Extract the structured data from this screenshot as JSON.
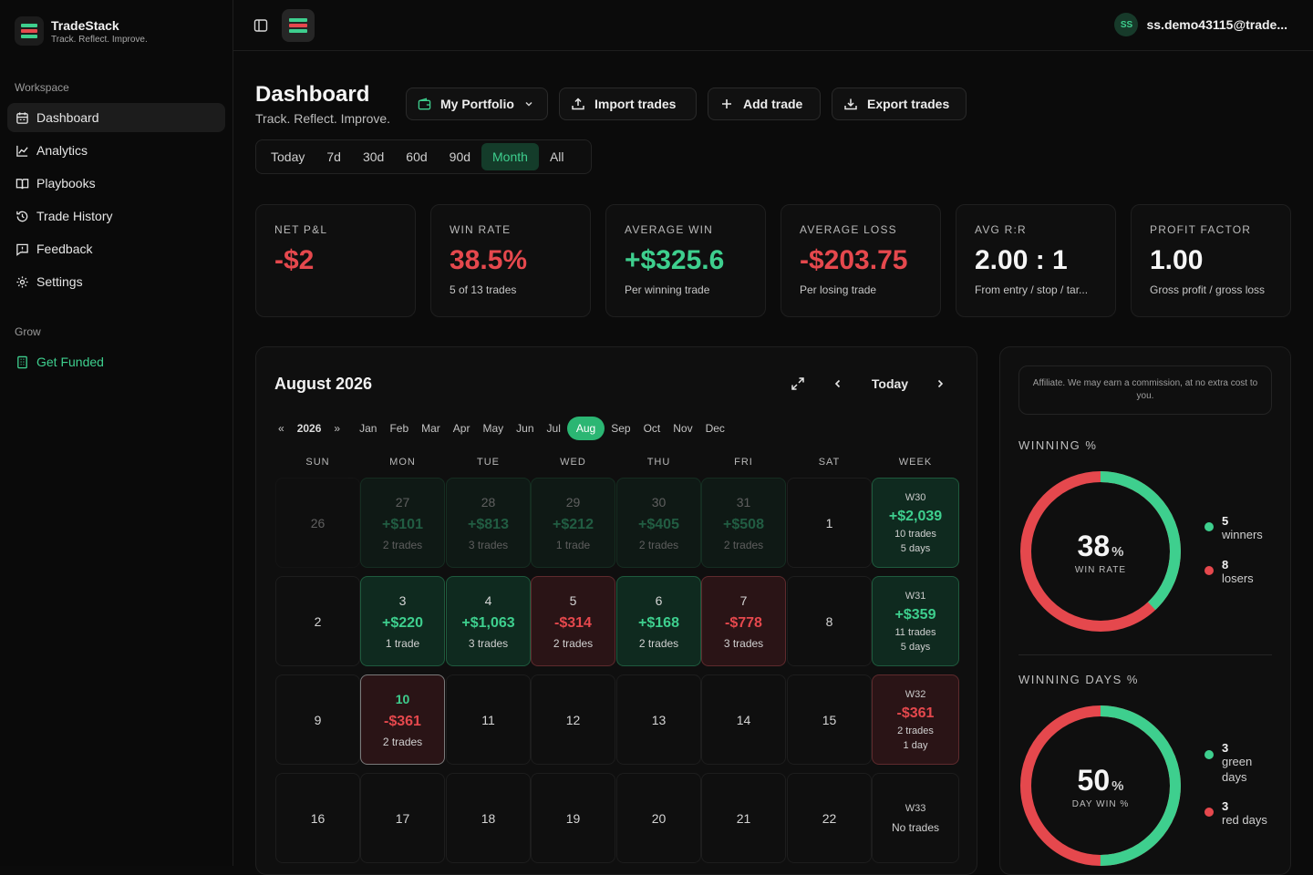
{
  "brand": {
    "name": "TradeStack",
    "tagline": "Track. Reflect. Improve."
  },
  "sidebar": {
    "workspace_label": "Workspace",
    "items": [
      {
        "label": "Dashboard",
        "icon": "calendar-icon",
        "active": true
      },
      {
        "label": "Analytics",
        "icon": "chart-line-icon"
      },
      {
        "label": "Playbooks",
        "icon": "book-icon"
      },
      {
        "label": "Trade History",
        "icon": "history-icon"
      },
      {
        "label": "Feedback",
        "icon": "message-icon"
      },
      {
        "label": "Settings",
        "icon": "gear-icon"
      }
    ],
    "grow_label": "Grow",
    "funded": {
      "label": "Get Funded",
      "icon": "building-icon"
    }
  },
  "topbar": {
    "user_initials": "SS",
    "user_email": "ss.demo43115@trade..."
  },
  "header": {
    "title": "Dashboard",
    "subtitle": "Track. Reflect. Improve.",
    "portfolio": "My Portfolio",
    "import_label": "Import trades",
    "add_label": "Add trade",
    "export_label": "Export trades"
  },
  "ranges": [
    "Today",
    "7d",
    "30d",
    "60d",
    "90d",
    "Month",
    "All"
  ],
  "active_range": "Month",
  "stats": [
    {
      "label": "NET P&L",
      "value": "-$2",
      "sub": "",
      "tone": "red"
    },
    {
      "label": "WIN RATE",
      "value": "38.5%",
      "sub": "5 of 13 trades",
      "tone": "red"
    },
    {
      "label": "AVERAGE WIN",
      "value": "+$325.6",
      "sub": "Per winning trade",
      "tone": "green"
    },
    {
      "label": "AVERAGE LOSS",
      "value": "-$203.75",
      "sub": "Per losing trade",
      "tone": "red"
    },
    {
      "label": "AVG R:R",
      "value": "2.00 : 1",
      "sub": "From entry / stop / tar...",
      "tone": "white"
    },
    {
      "label": "PROFIT FACTOR",
      "value": "1.00",
      "sub": "Gross profit / gross loss",
      "tone": "white"
    }
  ],
  "calendar": {
    "title": "August 2026",
    "today_label": "Today",
    "year": "2026",
    "year_prev": "«",
    "year_next": "»",
    "months": [
      "Jan",
      "Feb",
      "Mar",
      "Apr",
      "May",
      "Jun",
      "Jul",
      "Aug",
      "Sep",
      "Oct",
      "Nov",
      "Dec"
    ],
    "active_month": "Aug",
    "dow": [
      "SUN",
      "MON",
      "TUE",
      "WED",
      "THU",
      "FRI",
      "SAT",
      "WEEK"
    ],
    "weeks": [
      {
        "days": [
          {
            "d": "26",
            "faded": true
          },
          {
            "d": "27",
            "pl": "+$101",
            "tr": "2 trades",
            "s": "win",
            "faded": true
          },
          {
            "d": "28",
            "pl": "+$813",
            "tr": "3 trades",
            "s": "win",
            "faded": true
          },
          {
            "d": "29",
            "pl": "+$212",
            "tr": "1 trade",
            "s": "win",
            "faded": true
          },
          {
            "d": "30",
            "pl": "+$405",
            "tr": "2 trades",
            "s": "win",
            "faded": true
          },
          {
            "d": "31",
            "pl": "+$508",
            "tr": "2 trades",
            "s": "win",
            "faded": true
          },
          {
            "d": "1"
          }
        ],
        "summary": {
          "label": "W30",
          "pl": "+$2,039",
          "trades": "10 trades",
          "days": "5 days",
          "s": "win"
        }
      },
      {
        "days": [
          {
            "d": "2"
          },
          {
            "d": "3",
            "pl": "+$220",
            "tr": "1 trade",
            "s": "win"
          },
          {
            "d": "4",
            "pl": "+$1,063",
            "tr": "3 trades",
            "s": "win"
          },
          {
            "d": "5",
            "pl": "-$314",
            "tr": "2 trades",
            "s": "loss"
          },
          {
            "d": "6",
            "pl": "+$168",
            "tr": "2 trades",
            "s": "win"
          },
          {
            "d": "7",
            "pl": "-$778",
            "tr": "3 trades",
            "s": "loss"
          },
          {
            "d": "8"
          }
        ],
        "summary": {
          "label": "W31",
          "pl": "+$359",
          "trades": "11 trades",
          "days": "5 days",
          "s": "win"
        }
      },
      {
        "days": [
          {
            "d": "9"
          },
          {
            "d": "10",
            "pl": "-$361",
            "tr": "2 trades",
            "s": "loss",
            "today": true
          },
          {
            "d": "11"
          },
          {
            "d": "12"
          },
          {
            "d": "13"
          },
          {
            "d": "14"
          },
          {
            "d": "15"
          }
        ],
        "summary": {
          "label": "W32",
          "pl": "-$361",
          "trades": "2 trades",
          "days": "1 day",
          "s": "loss"
        }
      },
      {
        "days": [
          {
            "d": "16"
          },
          {
            "d": "17"
          },
          {
            "d": "18"
          },
          {
            "d": "19"
          },
          {
            "d": "20"
          },
          {
            "d": "21"
          },
          {
            "d": "22"
          }
        ],
        "summary": {
          "label": "W33",
          "pl": "",
          "trades": "No trades",
          "days": "",
          "s": "none"
        }
      }
    ]
  },
  "side": {
    "affiliate": "Affiliate. We may earn a commission, at no extra cost to you.",
    "winning_label": "WINNING %",
    "win_pct": 38,
    "win_caption": "WIN RATE",
    "winners": "5",
    "winners_label": "winners",
    "losers": "8",
    "losers_label": "losers",
    "days_label": "WINNING DAYS %",
    "day_pct": 50,
    "day_caption": "DAY WIN %",
    "green_days": "3",
    "green_label": "green days",
    "red_days": "3",
    "red_label": "red days",
    "pct_sign": "%"
  },
  "colors": {
    "green": "#3ecf8e",
    "red": "#e5484d",
    "accent": "#2bb673"
  }
}
